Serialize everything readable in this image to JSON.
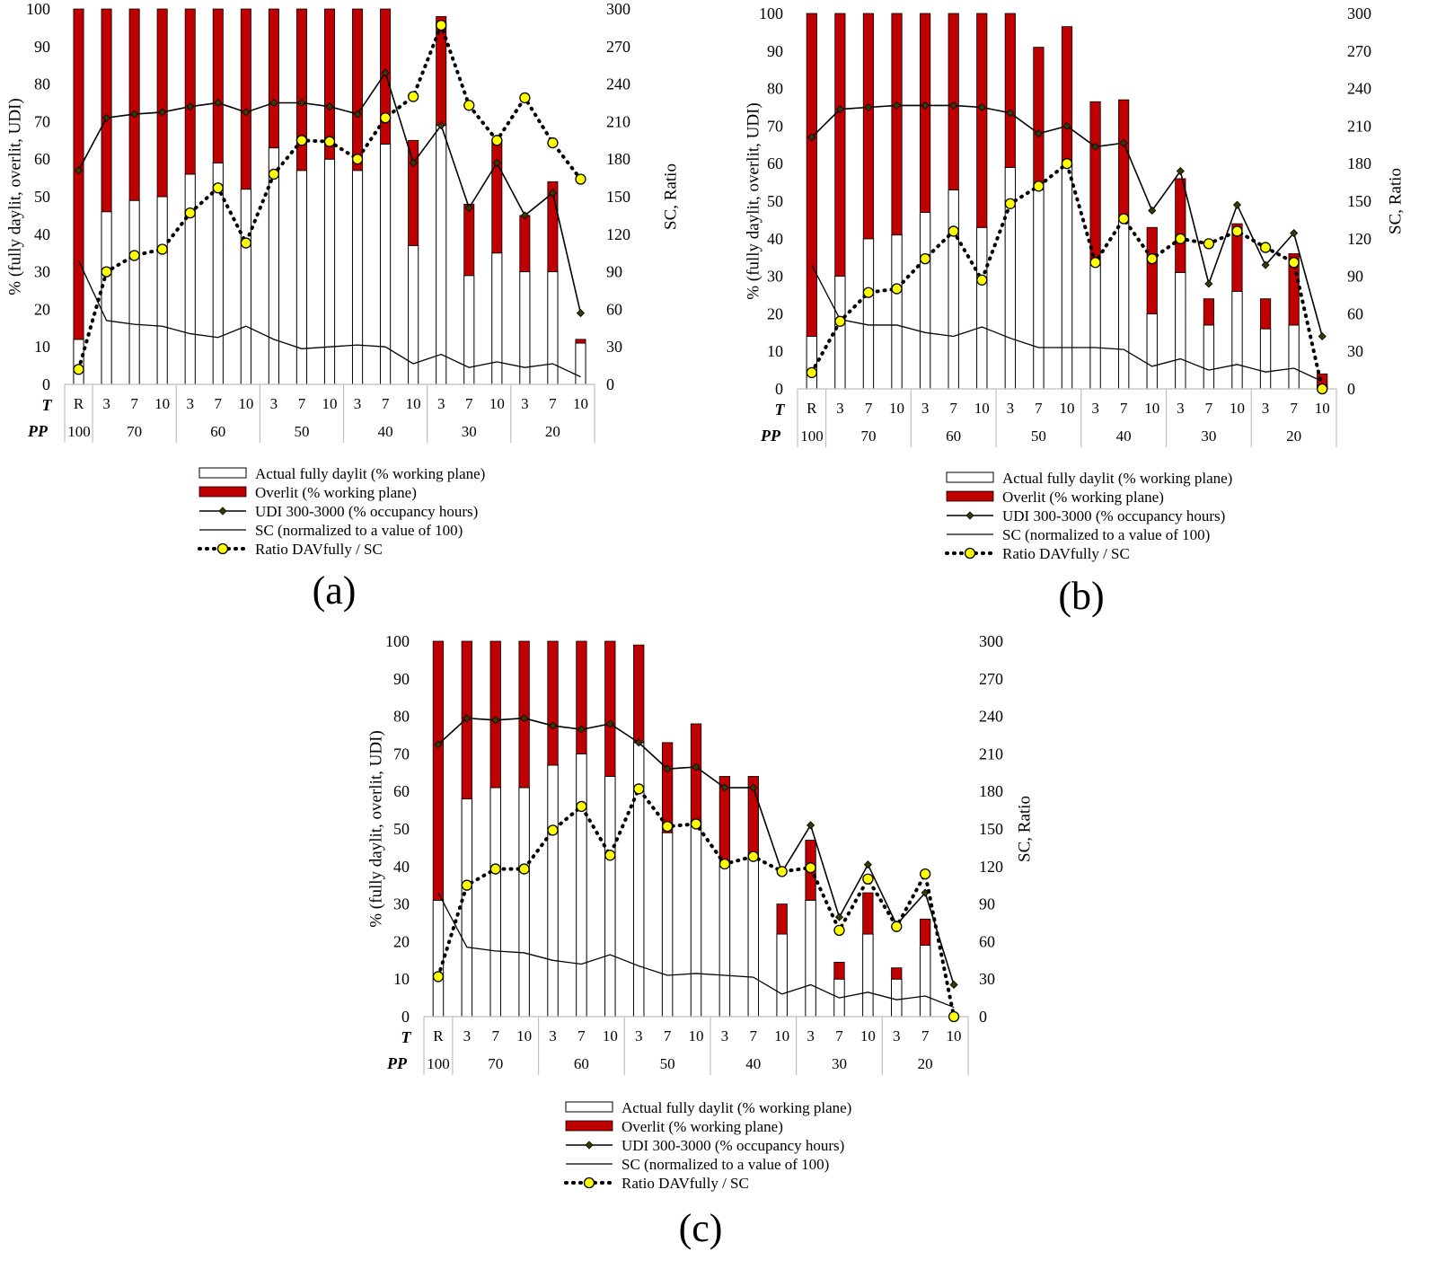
{
  "figure": {
    "axis_labels": {
      "left": "% (fully daylit, overlit, UDI)",
      "right": "SC, Ratio",
      "row_t": "T",
      "row_pp": "PP"
    },
    "legend": [
      "Actual fully daylit (% working plane)",
      "Overlit (% working plane)",
      "UDI 300-3000 (% occupancy hours)",
      "SC (normalized to a value of 100)",
      "Ratio DAVfully / SC"
    ],
    "colors": {
      "overlit": "#c00000",
      "ratio_marker": "#ffff00",
      "udi_marker": "#3a3a00"
    }
  },
  "chart_data": [
    {
      "type": "bar",
      "title": "(a)",
      "t_labels": [
        "R",
        "3",
        "7",
        "10",
        "3",
        "7",
        "10",
        "3",
        "7",
        "10",
        "3",
        "7",
        "10",
        "3",
        "7",
        "10",
        "3",
        "7",
        "10"
      ],
      "pp_groups": [
        {
          "label": "100",
          "span": 1
        },
        {
          "label": "70",
          "span": 3
        },
        {
          "label": "60",
          "span": 3
        },
        {
          "label": "50",
          "span": 3
        },
        {
          "label": "40",
          "span": 3
        },
        {
          "label": "30",
          "span": 3
        },
        {
          "label": "20",
          "span": 3
        }
      ],
      "ylim_left": [
        0,
        100
      ],
      "ylim_right": [
        0,
        300
      ],
      "yticks_left": [
        0,
        10,
        20,
        30,
        40,
        50,
        60,
        70,
        80,
        90,
        100
      ],
      "yticks_right": [
        0,
        30,
        60,
        90,
        120,
        150,
        180,
        210,
        240,
        270,
        300
      ],
      "series": [
        {
          "name": "Actual fully daylit (% working plane)",
          "axis": "left",
          "values": [
            12,
            46,
            49,
            50,
            56,
            59,
            52,
            63,
            57,
            60,
            57,
            64,
            37,
            69,
            29,
            35,
            30,
            30,
            11
          ]
        },
        {
          "name": "Overlit (% working plane)",
          "axis": "left",
          "stacked": true,
          "values": [
            88,
            54,
            51,
            50,
            44,
            41,
            48,
            37,
            43,
            40,
            43,
            36,
            28,
            29,
            19,
            30,
            15,
            24,
            1
          ]
        },
        {
          "name": "UDI 300-3000 (% occupancy hours)",
          "axis": "left",
          "values": [
            57,
            71,
            72,
            72.5,
            74,
            75,
            72.5,
            75,
            75,
            74,
            72,
            83,
            59,
            69,
            47,
            59,
            45,
            51,
            19
          ]
        },
        {
          "name": "SC (normalized to a value of 100)",
          "axis": "left",
          "values": [
            33,
            17,
            16,
            15.5,
            13.5,
            12.5,
            15.5,
            12,
            9.5,
            10,
            10.5,
            10,
            5.5,
            8,
            4.5,
            6,
            4.5,
            5.5,
            2
          ]
        },
        {
          "name": "Ratio DAVfully / SC",
          "axis": "right",
          "values": [
            12,
            90,
            103,
            108,
            137,
            157,
            113,
            168,
            195,
            194,
            180,
            213,
            230,
            287,
            223,
            195,
            229,
            193,
            164
          ]
        }
      ]
    },
    {
      "type": "bar",
      "title": "(b)",
      "t_labels": [
        "R",
        "3",
        "7",
        "10",
        "3",
        "7",
        "10",
        "3",
        "7",
        "10",
        "3",
        "7",
        "10",
        "3",
        "7",
        "10",
        "3",
        "7",
        "10"
      ],
      "pp_groups": [
        {
          "label": "100",
          "span": 1
        },
        {
          "label": "70",
          "span": 3
        },
        {
          "label": "60",
          "span": 3
        },
        {
          "label": "50",
          "span": 3
        },
        {
          "label": "40",
          "span": 3
        },
        {
          "label": "30",
          "span": 3
        },
        {
          "label": "20",
          "span": 3
        }
      ],
      "ylim_left": [
        0,
        100
      ],
      "ylim_right": [
        0,
        300
      ],
      "yticks_left": [
        0,
        10,
        20,
        30,
        40,
        50,
        60,
        70,
        80,
        90,
        100
      ],
      "yticks_right": [
        0,
        30,
        60,
        90,
        120,
        150,
        180,
        210,
        240,
        270,
        300
      ],
      "series": [
        {
          "name": "Actual fully daylit (% working plane)",
          "axis": "left",
          "values": [
            14,
            30,
            40,
            41,
            47,
            53,
            43,
            59,
            53,
            60,
            33,
            45,
            20,
            31,
            17,
            26,
            16,
            17,
            1
          ]
        },
        {
          "name": "Overlit (% working plane)",
          "axis": "left",
          "stacked": true,
          "values": [
            86,
            70,
            60,
            59,
            53,
            47,
            57,
            41,
            38,
            36.5,
            43.5,
            32,
            23,
            25,
            7,
            18,
            8,
            19,
            3
          ]
        },
        {
          "name": "UDI 300-3000 (% occupancy hours)",
          "axis": "left",
          "values": [
            67,
            74.5,
            75,
            75.5,
            75.5,
            75.5,
            75,
            73.5,
            68,
            70,
            64.5,
            65.5,
            47.5,
            58,
            28,
            49,
            33,
            41.5,
            14
          ]
        },
        {
          "name": "SC (normalized to a value of 100)",
          "axis": "left",
          "values": [
            33,
            18.5,
            17,
            17,
            15,
            14,
            16.5,
            13.5,
            11,
            11,
            11,
            10.5,
            6,
            8,
            5,
            6.5,
            4.5,
            5.5,
            2
          ]
        },
        {
          "name": "Ratio DAVfully / SC",
          "axis": "right",
          "values": [
            13,
            54,
            77,
            80,
            104,
            126,
            87,
            148,
            162,
            180,
            101,
            136,
            104,
            120,
            116,
            126,
            113,
            101,
            0
          ]
        }
      ]
    },
    {
      "type": "bar",
      "title": "(c)",
      "t_labels": [
        "R",
        "3",
        "7",
        "10",
        "3",
        "7",
        "10",
        "3",
        "7",
        "10",
        "3",
        "7",
        "10",
        "3",
        "7",
        "10",
        "3",
        "7",
        "10"
      ],
      "pp_groups": [
        {
          "label": "100",
          "span": 1
        },
        {
          "label": "70",
          "span": 3
        },
        {
          "label": "60",
          "span": 3
        },
        {
          "label": "50",
          "span": 3
        },
        {
          "label": "40",
          "span": 3
        },
        {
          "label": "30",
          "span": 3
        },
        {
          "label": "20",
          "span": 3
        }
      ],
      "ylim_left": [
        0,
        100
      ],
      "ylim_right": [
        0,
        300
      ],
      "yticks_left": [
        0,
        10,
        20,
        30,
        40,
        50,
        60,
        70,
        80,
        90,
        100
      ],
      "yticks_right": [
        0,
        30,
        60,
        90,
        120,
        150,
        180,
        210,
        240,
        270,
        300
      ],
      "series": [
        {
          "name": "Actual fully daylit (% working plane)",
          "axis": "left",
          "values": [
            31,
            58,
            61,
            61,
            67,
            70,
            64,
            73,
            49,
            52,
            40,
            43,
            22,
            31,
            10,
            22,
            10,
            19,
            0
          ]
        },
        {
          "name": "Overlit (% working plane)",
          "axis": "left",
          "stacked": true,
          "values": [
            69,
            42,
            39,
            39,
            33,
            30,
            36,
            26,
            24,
            26,
            24,
            21,
            8,
            16,
            4.5,
            11,
            3,
            7,
            0
          ]
        },
        {
          "name": "UDI 300-3000 (% occupancy hours)",
          "axis": "left",
          "values": [
            72.5,
            79.5,
            79,
            79.5,
            77.5,
            76.5,
            78,
            73,
            66,
            66.5,
            61,
            61,
            38.5,
            51,
            26.5,
            40.5,
            24.5,
            33,
            8.5
          ]
        },
        {
          "name": "SC (normalized to a value of 100)",
          "axis": "left",
          "values": [
            33,
            18.5,
            17.5,
            17,
            15,
            14,
            16.5,
            13.5,
            11,
            11.5,
            11,
            10.5,
            6,
            8.5,
            5,
            6.5,
            4.5,
            5.5,
            2.5
          ]
        },
        {
          "name": "Ratio DAVfully / SC",
          "axis": "right",
          "values": [
            32,
            105,
            118,
            118,
            149,
            168,
            129,
            182,
            152,
            154,
            122,
            128,
            116,
            119,
            69,
            110,
            72,
            114,
            0
          ]
        }
      ]
    }
  ]
}
